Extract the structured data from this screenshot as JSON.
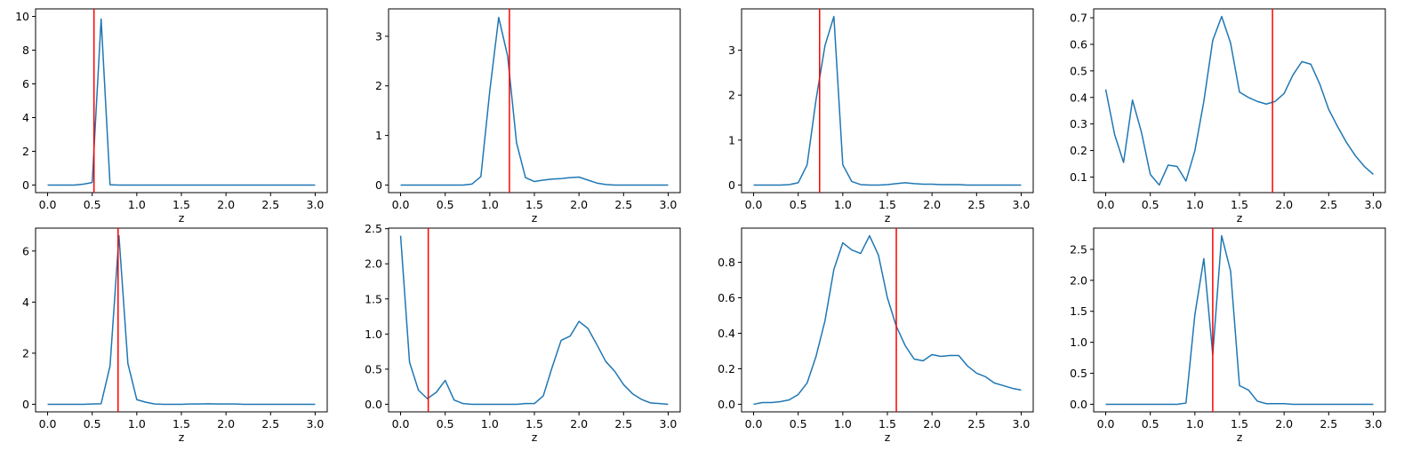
{
  "colors": {
    "series": "#1f77b4",
    "marker_line": "#ff0000",
    "axes": "#000000"
  },
  "chart_data": [
    {
      "type": "line",
      "xlabel": "z",
      "xlim": [
        0,
        3
      ],
      "ylim": [
        0,
        10
      ],
      "xticks": [
        "0.0",
        "0.5",
        "1.0",
        "1.5",
        "2.0",
        "2.5",
        "3.0"
      ],
      "yticks": [
        "0",
        "2",
        "4",
        "6",
        "8",
        "10"
      ],
      "vline": 0.52,
      "x": [
        0,
        0.1,
        0.2,
        0.3,
        0.4,
        0.5,
        0.6,
        0.7,
        0.8,
        0.9,
        1.0,
        1.1,
        1.2,
        1.3,
        1.4,
        1.5,
        1.6,
        1.7,
        1.8,
        1.9,
        2.0,
        2.1,
        2.2,
        2.3,
        2.4,
        2.5,
        2.6,
        2.7,
        2.8,
        2.9,
        3.0
      ],
      "y": [
        0,
        0,
        0,
        0,
        0.05,
        0.15,
        9.85,
        0.02,
        0,
        0,
        0,
        0,
        0,
        0,
        0,
        0,
        0,
        0,
        0,
        0,
        0,
        0,
        0,
        0,
        0,
        0,
        0,
        0,
        0,
        0,
        0
      ]
    },
    {
      "type": "line",
      "xlabel": "z",
      "xlim": [
        0,
        3
      ],
      "ylim": [
        0,
        3.4
      ],
      "xticks": [
        "0.0",
        "0.5",
        "1.0",
        "1.5",
        "2.0",
        "2.5",
        "3.0"
      ],
      "yticks": [
        "0",
        "1",
        "2",
        "3"
      ],
      "vline": 1.22,
      "x": [
        0,
        0.1,
        0.2,
        0.3,
        0.4,
        0.5,
        0.6,
        0.7,
        0.8,
        0.9,
        1.0,
        1.1,
        1.2,
        1.3,
        1.4,
        1.5,
        1.6,
        1.7,
        1.8,
        1.9,
        2.0,
        2.1,
        2.2,
        2.3,
        2.4,
        2.5,
        2.6,
        2.7,
        2.8,
        2.9,
        3.0
      ],
      "y": [
        0,
        0,
        0,
        0,
        0,
        0,
        0,
        0,
        0.02,
        0.17,
        1.9,
        3.38,
        2.6,
        0.85,
        0.15,
        0.07,
        0.1,
        0.12,
        0.13,
        0.15,
        0.16,
        0.1,
        0.04,
        0.01,
        0,
        0,
        0,
        0,
        0,
        0,
        0
      ]
    },
    {
      "type": "line",
      "xlabel": "z",
      "xlim": [
        0,
        3
      ],
      "ylim": [
        0,
        3.75
      ],
      "xticks": [
        "0.0",
        "0.5",
        "1.0",
        "1.5",
        "2.0",
        "2.5",
        "3.0"
      ],
      "yticks": [
        "0",
        "1",
        "2",
        "3"
      ],
      "vline": 0.74,
      "x": [
        0,
        0.1,
        0.2,
        0.3,
        0.4,
        0.5,
        0.6,
        0.7,
        0.8,
        0.9,
        1.0,
        1.1,
        1.2,
        1.3,
        1.4,
        1.5,
        1.6,
        1.7,
        1.8,
        1.9,
        2.0,
        2.1,
        2.2,
        2.3,
        2.4,
        2.5,
        2.6,
        2.7,
        2.8,
        2.9,
        3.0
      ],
      "y": [
        0,
        0,
        0,
        0,
        0.01,
        0.05,
        0.45,
        1.9,
        3.1,
        3.75,
        0.45,
        0.08,
        0.01,
        0,
        0,
        0.01,
        0.03,
        0.05,
        0.03,
        0.02,
        0.02,
        0.01,
        0.01,
        0.01,
        0,
        0,
        0,
        0,
        0,
        0,
        0
      ]
    },
    {
      "type": "line",
      "xlabel": "z",
      "xlim": [
        0,
        3
      ],
      "ylim": [
        0.07,
        0.705
      ],
      "xticks": [
        "0.0",
        "0.5",
        "1.0",
        "1.5",
        "2.0",
        "2.5",
        "3.0"
      ],
      "yticks": [
        "0.1",
        "0.2",
        "0.3",
        "0.4",
        "0.5",
        "0.6",
        "0.7"
      ],
      "vline": 1.87,
      "x": [
        0,
        0.1,
        0.2,
        0.3,
        0.4,
        0.5,
        0.6,
        0.7,
        0.8,
        0.9,
        1.0,
        1.1,
        1.2,
        1.3,
        1.4,
        1.5,
        1.6,
        1.7,
        1.8,
        1.9,
        2.0,
        2.1,
        2.2,
        2.3,
        2.4,
        2.5,
        2.6,
        2.7,
        2.8,
        2.9,
        3.0
      ],
      "y": [
        0.43,
        0.26,
        0.155,
        0.39,
        0.27,
        0.11,
        0.07,
        0.145,
        0.14,
        0.085,
        0.2,
        0.385,
        0.615,
        0.705,
        0.605,
        0.42,
        0.4,
        0.385,
        0.375,
        0.385,
        0.415,
        0.485,
        0.535,
        0.525,
        0.45,
        0.355,
        0.29,
        0.23,
        0.18,
        0.14,
        0.11
      ]
    },
    {
      "type": "line",
      "xlabel": "z",
      "xlim": [
        0,
        3
      ],
      "ylim": [
        0,
        6.6
      ],
      "xticks": [
        "0.0",
        "0.5",
        "1.0",
        "1.5",
        "2.0",
        "2.5",
        "3.0"
      ],
      "yticks": [
        "0",
        "2",
        "4",
        "6"
      ],
      "vline": 0.79,
      "x": [
        0,
        0.1,
        0.2,
        0.3,
        0.4,
        0.5,
        0.6,
        0.7,
        0.8,
        0.9,
        1.0,
        1.1,
        1.2,
        1.3,
        1.4,
        1.5,
        1.6,
        1.7,
        1.8,
        1.9,
        2.0,
        2.1,
        2.2,
        2.3,
        2.4,
        2.5,
        2.6,
        2.7,
        2.8,
        2.9,
        3.0
      ],
      "y": [
        0,
        0,
        0,
        0,
        0,
        0.01,
        0.02,
        1.5,
        6.6,
        1.6,
        0.18,
        0.08,
        0.01,
        0,
        0,
        0,
        0.01,
        0.01,
        0.02,
        0.01,
        0.01,
        0.01,
        0,
        0,
        0,
        0,
        0,
        0,
        0,
        0,
        0
      ]
    },
    {
      "type": "line",
      "xlabel": "z",
      "xlim": [
        0,
        3
      ],
      "ylim": [
        0,
        2.4
      ],
      "xticks": [
        "0.0",
        "0.5",
        "1.0",
        "1.5",
        "2.0",
        "2.5",
        "3.0"
      ],
      "yticks": [
        "0.0",
        "0.5",
        "1.0",
        "1.5",
        "2.0",
        "2.5"
      ],
      "vline": 0.31,
      "x": [
        0,
        0.1,
        0.2,
        0.3,
        0.4,
        0.5,
        0.6,
        0.7,
        0.8,
        0.9,
        1.0,
        1.1,
        1.2,
        1.3,
        1.4,
        1.5,
        1.6,
        1.7,
        1.8,
        1.9,
        2.0,
        2.1,
        2.2,
        2.3,
        2.4,
        2.5,
        2.6,
        2.7,
        2.8,
        2.9,
        3.0
      ],
      "y": [
        2.4,
        0.6,
        0.2,
        0.08,
        0.17,
        0.34,
        0.06,
        0.01,
        0,
        0,
        0,
        0,
        0,
        0,
        0.01,
        0.01,
        0.12,
        0.53,
        0.91,
        0.97,
        1.18,
        1.08,
        0.85,
        0.61,
        0.47,
        0.28,
        0.15,
        0.07,
        0.02,
        0.01,
        0
      ]
    },
    {
      "type": "line",
      "xlabel": "z",
      "xlim": [
        0,
        3
      ],
      "ylim": [
        0,
        0.95
      ],
      "xticks": [
        "0.0",
        "0.5",
        "1.0",
        "1.5",
        "2.0",
        "2.5",
        "3.0"
      ],
      "yticks": [
        "0.0",
        "0.2",
        "0.4",
        "0.6",
        "0.8"
      ],
      "vline": 1.6,
      "x": [
        0,
        0.1,
        0.2,
        0.3,
        0.4,
        0.5,
        0.6,
        0.7,
        0.8,
        0.9,
        1.0,
        1.1,
        1.2,
        1.3,
        1.4,
        1.5,
        1.6,
        1.7,
        1.8,
        1.9,
        2.0,
        2.1,
        2.2,
        2.3,
        2.4,
        2.5,
        2.6,
        2.7,
        2.8,
        2.9,
        3.0
      ],
      "y": [
        0,
        0.01,
        0.01,
        0.015,
        0.025,
        0.055,
        0.12,
        0.27,
        0.47,
        0.76,
        0.91,
        0.87,
        0.85,
        0.95,
        0.84,
        0.6,
        0.44,
        0.33,
        0.255,
        0.245,
        0.28,
        0.27,
        0.275,
        0.275,
        0.215,
        0.175,
        0.155,
        0.12,
        0.105,
        0.09,
        0.08
      ]
    },
    {
      "type": "line",
      "xlabel": "z",
      "xlim": [
        0,
        3
      ],
      "ylim": [
        0,
        2.72
      ],
      "xticks": [
        "0.0",
        "0.5",
        "1.0",
        "1.5",
        "2.0",
        "2.5",
        "3.0"
      ],
      "yticks": [
        "0.0",
        "0.5",
        "1.0",
        "1.5",
        "2.0",
        "2.5"
      ],
      "vline": 1.2,
      "x": [
        0,
        0.1,
        0.2,
        0.3,
        0.4,
        0.5,
        0.6,
        0.7,
        0.8,
        0.9,
        1.0,
        1.1,
        1.2,
        1.3,
        1.4,
        1.5,
        1.6,
        1.7,
        1.8,
        1.9,
        2.0,
        2.1,
        2.2,
        2.3,
        2.4,
        2.5,
        2.6,
        2.7,
        2.8,
        2.9,
        3.0
      ],
      "y": [
        0,
        0,
        0,
        0,
        0,
        0,
        0,
        0,
        0,
        0.02,
        1.45,
        2.35,
        0.8,
        2.72,
        2.15,
        0.3,
        0.23,
        0.05,
        0.01,
        0.01,
        0.01,
        0,
        0,
        0,
        0,
        0,
        0,
        0,
        0,
        0,
        0
      ]
    }
  ]
}
